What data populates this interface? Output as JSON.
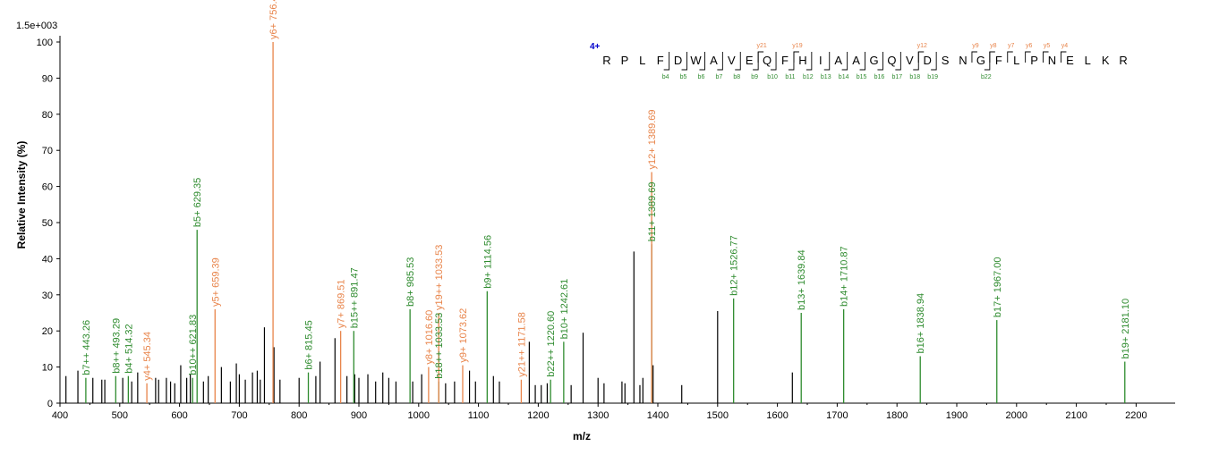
{
  "chart_data": {
    "type": "bar",
    "scale_label": "1.5e+003",
    "xlabel": "m/z",
    "ylabel": "Relative   Intensity (%)",
    "xlim": [
      400,
      2250
    ],
    "ylim": [
      0,
      100
    ],
    "x_ticks": [
      400,
      500,
      600,
      700,
      800,
      900,
      1000,
      1100,
      1200,
      1300,
      1400,
      1500,
      1600,
      1700,
      1800,
      1900,
      2000,
      2100,
      2200
    ],
    "y_ticks": [
      0,
      10,
      20,
      30,
      40,
      50,
      60,
      70,
      80,
      90,
      100
    ],
    "colors": {
      "b": "#2e8b2e",
      "y": "#e8844a",
      "other": "#000000",
      "charge": "#0000cc"
    },
    "unassigned_peaks": [
      {
        "mz": 410,
        "i": 7.5
      },
      {
        "mz": 430,
        "i": 9
      },
      {
        "mz": 455,
        "i": 7
      },
      {
        "mz": 470,
        "i": 6.5
      },
      {
        "mz": 475,
        "i": 6.5
      },
      {
        "mz": 505,
        "i": 7
      },
      {
        "mz": 520,
        "i": 6
      },
      {
        "mz": 530,
        "i": 8.5
      },
      {
        "mz": 560,
        "i": 7
      },
      {
        "mz": 565,
        "i": 6.5
      },
      {
        "mz": 578,
        "i": 7
      },
      {
        "mz": 585,
        "i": 6
      },
      {
        "mz": 592,
        "i": 5.5
      },
      {
        "mz": 602,
        "i": 10.5
      },
      {
        "mz": 612,
        "i": 7
      },
      {
        "mz": 618,
        "i": 8
      },
      {
        "mz": 640,
        "i": 6
      },
      {
        "mz": 648,
        "i": 7.5
      },
      {
        "mz": 670,
        "i": 10
      },
      {
        "mz": 685,
        "i": 6
      },
      {
        "mz": 695,
        "i": 11
      },
      {
        "mz": 700,
        "i": 8
      },
      {
        "mz": 710,
        "i": 6.5
      },
      {
        "mz": 722,
        "i": 8.5
      },
      {
        "mz": 730,
        "i": 9
      },
      {
        "mz": 735,
        "i": 6.5
      },
      {
        "mz": 742,
        "i": 21
      },
      {
        "mz": 758,
        "i": 15.5
      },
      {
        "mz": 768,
        "i": 6.5
      },
      {
        "mz": 800,
        "i": 7
      },
      {
        "mz": 828,
        "i": 7.5
      },
      {
        "mz": 835,
        "i": 11.5
      },
      {
        "mz": 860,
        "i": 18
      },
      {
        "mz": 880,
        "i": 7.5
      },
      {
        "mz": 893,
        "i": 8
      },
      {
        "mz": 900,
        "i": 7
      },
      {
        "mz": 915,
        "i": 8
      },
      {
        "mz": 928,
        "i": 6
      },
      {
        "mz": 940,
        "i": 8.5
      },
      {
        "mz": 950,
        "i": 7
      },
      {
        "mz": 962,
        "i": 6
      },
      {
        "mz": 990,
        "i": 6
      },
      {
        "mz": 1005,
        "i": 8
      },
      {
        "mz": 1045,
        "i": 5.5
      },
      {
        "mz": 1060,
        "i": 6
      },
      {
        "mz": 1085,
        "i": 9
      },
      {
        "mz": 1095,
        "i": 6
      },
      {
        "mz": 1125,
        "i": 7.5
      },
      {
        "mz": 1135,
        "i": 6
      },
      {
        "mz": 1185,
        "i": 17
      },
      {
        "mz": 1195,
        "i": 5
      },
      {
        "mz": 1205,
        "i": 5
      },
      {
        "mz": 1215,
        "i": 5.5
      },
      {
        "mz": 1255,
        "i": 5
      },
      {
        "mz": 1275,
        "i": 19.5
      },
      {
        "mz": 1300,
        "i": 7
      },
      {
        "mz": 1310,
        "i": 5.5
      },
      {
        "mz": 1340,
        "i": 6
      },
      {
        "mz": 1345,
        "i": 5.5
      },
      {
        "mz": 1360,
        "i": 42
      },
      {
        "mz": 1370,
        "i": 5
      },
      {
        "mz": 1375,
        "i": 7
      },
      {
        "mz": 1392,
        "i": 10.5
      },
      {
        "mz": 1440,
        "i": 5
      },
      {
        "mz": 1500,
        "i": 25.5
      },
      {
        "mz": 1625,
        "i": 8.5
      }
    ],
    "labeled_peaks": [
      {
        "mz": 443.26,
        "i": 7,
        "series": "b",
        "label": "b7++ 443.26"
      },
      {
        "mz": 493.29,
        "i": 7.5,
        "series": "b",
        "label": "b8++ 493.29"
      },
      {
        "mz": 514.32,
        "i": 7.5,
        "series": "b",
        "label": "b4+ 514.32"
      },
      {
        "mz": 545.34,
        "i": 5.5,
        "series": "y",
        "label": "y4+ 545.34"
      },
      {
        "mz": 621.83,
        "i": 7,
        "series": "b",
        "label": "b10++ 621.83"
      },
      {
        "mz": 629.35,
        "i": 48,
        "series": "b",
        "label": "b5+ 629.35"
      },
      {
        "mz": 659.39,
        "i": 26,
        "series": "y",
        "label": "y5+ 659.39"
      },
      {
        "mz": 756.4,
        "i": 100,
        "series": "y",
        "label": "y6+ 756.4"
      },
      {
        "mz": 815.45,
        "i": 8.5,
        "series": "b",
        "label": "b6+ 815.45"
      },
      {
        "mz": 869.51,
        "i": 20,
        "series": "y",
        "label": "y7+ 869.51"
      },
      {
        "mz": 891.47,
        "i": 20,
        "series": "b",
        "label": "b15++ 891.47"
      },
      {
        "mz": 985.53,
        "i": 26,
        "series": "b",
        "label": "b8+ 985.53"
      },
      {
        "mz": 1016.6,
        "i": 10,
        "series": "y",
        "label": "y8+ 1016.60"
      },
      {
        "mz": 1033.53,
        "i": 6,
        "series": "b",
        "label": "b18++ 1033.53"
      },
      {
        "mz": 1033.53,
        "i": 25,
        "series": "y",
        "label": "y19++ 1033.53"
      },
      {
        "mz": 1073.62,
        "i": 10.5,
        "series": "y",
        "label": "y9+ 1073.62"
      },
      {
        "mz": 1114.56,
        "i": 31,
        "series": "b",
        "label": "b9+ 1114.56"
      },
      {
        "mz": 1171.58,
        "i": 6.5,
        "series": "y",
        "label": "y21++ 1171.58"
      },
      {
        "mz": 1220.6,
        "i": 6.5,
        "series": "b",
        "label": "b22++ 1220.60"
      },
      {
        "mz": 1242.61,
        "i": 17,
        "series": "b",
        "label": "b10+ 1242.61"
      },
      {
        "mz": 1389.69,
        "i": 44,
        "series": "b",
        "label": "b11+ 1389.69"
      },
      {
        "mz": 1389.69,
        "i": 64,
        "series": "y",
        "label": "y12+ 1389.69"
      },
      {
        "mz": 1526.77,
        "i": 29,
        "series": "b",
        "label": "b12+ 1526.77"
      },
      {
        "mz": 1639.84,
        "i": 25,
        "series": "b",
        "label": "b13+ 1639.84"
      },
      {
        "mz": 1710.87,
        "i": 26,
        "series": "b",
        "label": "b14+ 1710.87"
      },
      {
        "mz": 1838.94,
        "i": 13,
        "series": "b",
        "label": "b16+ 1838.94"
      },
      {
        "mz": 1967.0,
        "i": 23,
        "series": "b",
        "label": "b17+ 1967.00"
      },
      {
        "mz": 2181.1,
        "i": 11.5,
        "series": "b",
        "label": "b19+ 2181.10"
      }
    ]
  },
  "sequence": {
    "charge": "4+",
    "residues": [
      "R",
      "P",
      "L",
      "F",
      "D",
      "W",
      "A",
      "V",
      "E",
      "Q",
      "F",
      "H",
      "I",
      "A",
      "A",
      "G",
      "Q",
      "V",
      "D",
      "S",
      "N",
      "G",
      "F",
      "L",
      "P",
      "N",
      "E",
      "L",
      "K",
      "R"
    ],
    "b_ions": [
      {
        "after": 4,
        "label": "b4"
      },
      {
        "after": 5,
        "label": "b5"
      },
      {
        "after": 6,
        "label": "b6"
      },
      {
        "after": 7,
        "label": "b7"
      },
      {
        "after": 8,
        "label": "b8"
      },
      {
        "after": 9,
        "label": "b9"
      },
      {
        "after": 10,
        "label": "b10"
      },
      {
        "after": 11,
        "label": "b11"
      },
      {
        "after": 12,
        "label": "b12"
      },
      {
        "after": 13,
        "label": "b13"
      },
      {
        "after": 14,
        "label": "b14"
      },
      {
        "after": 15,
        "label": "b15"
      },
      {
        "after": 16,
        "label": "b16"
      },
      {
        "after": 17,
        "label": "b17"
      },
      {
        "after": 18,
        "label": "b18"
      },
      {
        "after": 19,
        "label": "b19"
      },
      {
        "after": 22,
        "label": "b22"
      }
    ],
    "y_ions": [
      {
        "after": 9,
        "label": "y21"
      },
      {
        "after": 11,
        "label": "y19"
      },
      {
        "after": 18,
        "label": "y12"
      },
      {
        "after": 21,
        "label": "y9"
      },
      {
        "after": 22,
        "label": "y8"
      },
      {
        "after": 23,
        "label": "y7"
      },
      {
        "after": 24,
        "label": "y6"
      },
      {
        "after": 25,
        "label": "y5"
      },
      {
        "after": 26,
        "label": "y4"
      }
    ]
  }
}
